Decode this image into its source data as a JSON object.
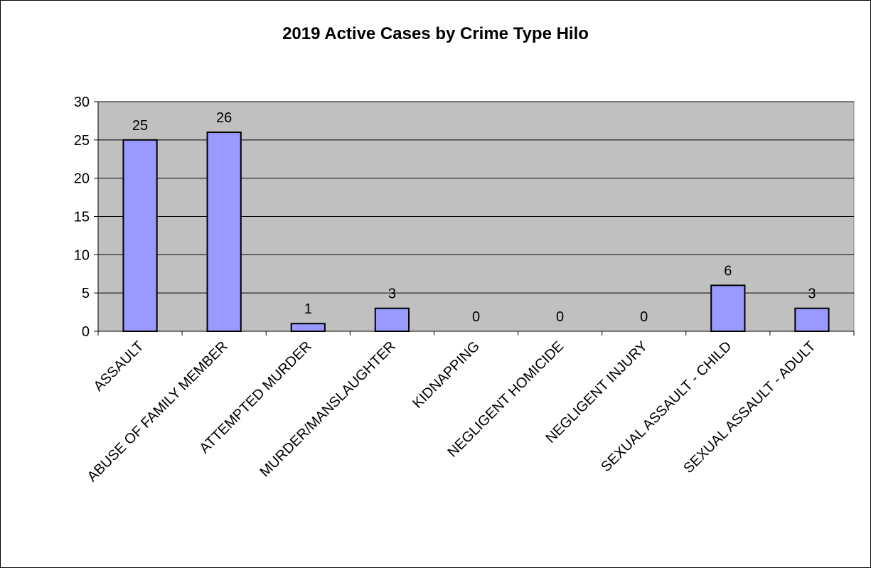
{
  "chart_data": {
    "type": "bar",
    "title": "2019 Active Cases by Crime Type Hilo",
    "xlabel": "",
    "ylabel": "",
    "categories": [
      "ASSAULT",
      "ABUSE OF FAMILY MEMBER",
      "ATTEMPTED MURDER",
      "MURDER/MANSLAUGHTER",
      "KIDNAPPING",
      "NEGLIGENT HOMICIDE",
      "NEGLIGENT INJURY",
      "SEXUAL ASSAULT - CHILD",
      "SEXUAL ASSAULT - ADULT"
    ],
    "values": [
      25,
      26,
      1,
      3,
      0,
      0,
      0,
      6,
      3
    ],
    "ylim": [
      0,
      30
    ],
    "yticks": [
      0,
      5,
      10,
      15,
      20,
      25,
      30
    ],
    "grid": true,
    "legend": "none",
    "colors": {
      "bar_fill": "#9999ff",
      "bar_stroke": "#000000",
      "plot_background": "#c0c0c0",
      "gridline": "#000000"
    }
  }
}
